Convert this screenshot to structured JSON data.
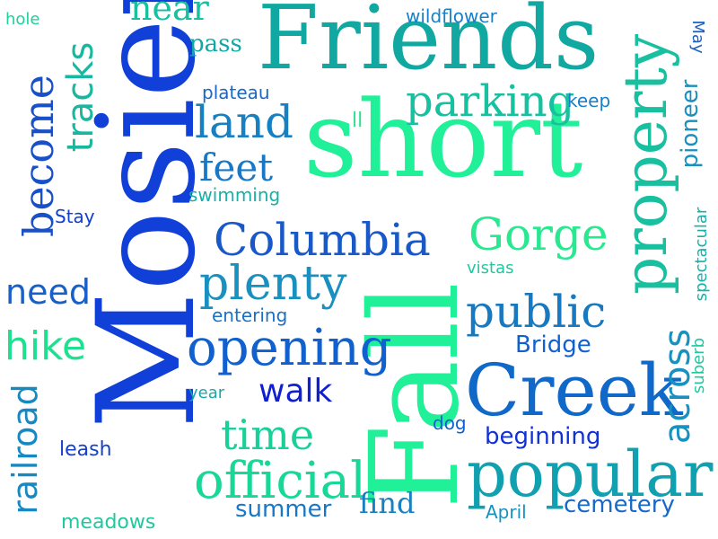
{
  "words": {
    "mosier": "Mosier",
    "friends": "Friends",
    "short": "short",
    "fall": "Fall",
    "property": "property",
    "creek": "Creek",
    "popular": "popular",
    "columbia": "Columbia",
    "gorge": "Gorge",
    "opening": "opening",
    "official": "official",
    "plenty": "plenty",
    "public": "public",
    "land": "land",
    "parking": "parking",
    "feet": "feet",
    "time": "time",
    "walk": "walk",
    "hike": "hike",
    "need": "need",
    "become": "become",
    "tracks": "tracks",
    "railroad": "railroad",
    "across": "across",
    "near": "near",
    "pass": "pass",
    "hole": "hole",
    "wildflower": "wildflower",
    "may": "May",
    "keep": "keep",
    "pioneer": "pioneer",
    "plateau": "plateau",
    "ll": "ll",
    "swimming": "swimming",
    "stay": "Stay",
    "vistas": "vistas",
    "spectacular": "spectacular",
    "entering": "entering",
    "bridge": "Bridge",
    "suberb": "suberb",
    "year": "year",
    "dog": "dog",
    "beginning": "beginning",
    "leash": "leash",
    "find": "find",
    "summer": "summer",
    "april": "April",
    "cemetery": "cemetery",
    "meadows": "meadows"
  }
}
